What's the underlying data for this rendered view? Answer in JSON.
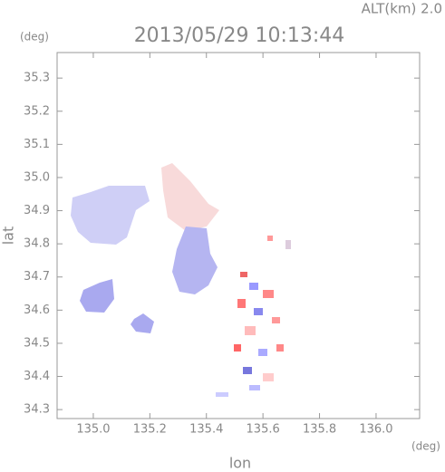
{
  "chart_data": {
    "type": "map",
    "title": "2013/05/29 10:13:44",
    "subtitle": "ALT(km) 2.0",
    "y_unit": "(deg)",
    "x_unit": "(deg)",
    "xlabel": "lon",
    "ylabel": "lat",
    "xlim": [
      134.872,
      136.154
    ],
    "ylim": [
      34.273,
      35.377
    ],
    "xticks": [
      {
        "value": 135.0,
        "label": "135.0"
      },
      135.2,
      135.4,
      135.6,
      135.8,
      {
        "value": 136.0,
        "label": "136.0"
      }
    ],
    "yticks": [
      34.3,
      34.4,
      34.5,
      34.6,
      34.7,
      34.8,
      34.9,
      {
        "value": 35.0,
        "label": "35.0"
      },
      35.1,
      35.2,
      35.3
    ]
  }
}
